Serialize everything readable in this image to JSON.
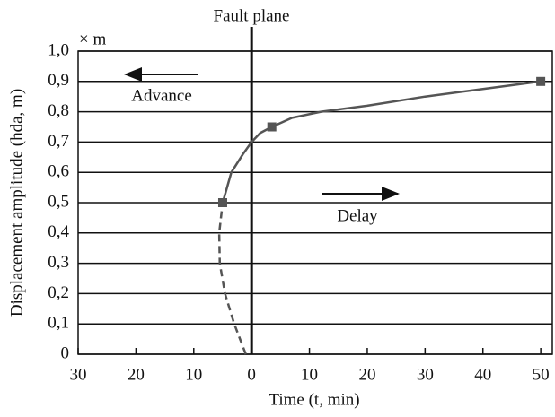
{
  "chart_data": {
    "type": "line",
    "title": "Fault plane",
    "x_label": "Time (t, min)",
    "y_label": "Displacement amplitude (hda, m)",
    "annotations": [
      "× m",
      "Advance",
      "Delay"
    ],
    "xlim": [
      -30,
      52
    ],
    "xticks": [
      {
        "value": -30,
        "label": "30"
      },
      {
        "value": -20,
        "label": "20"
      },
      {
        "value": -10,
        "label": "10"
      },
      0,
      10,
      20,
      30,
      40,
      50
    ],
    "ylim": [
      0,
      1
    ],
    "yticks": [
      0,
      {
        "value": 0.1,
        "label": "0,1"
      },
      {
        "value": 0.2,
        "label": "0,2"
      },
      {
        "value": 0.3,
        "label": "0,3"
      },
      {
        "value": 0.4,
        "label": "0,4"
      },
      {
        "value": 0.5,
        "label": "0,5"
      },
      {
        "value": 0.6,
        "label": "0,6"
      },
      {
        "value": 0.7,
        "label": "0,7"
      },
      {
        "value": 0.8,
        "label": "0,8"
      },
      {
        "value": 0.9,
        "label": "0,9"
      },
      {
        "value": 1.0,
        "label": "1,0"
      }
    ],
    "grid": true,
    "series": [
      {
        "color": "#555555",
        "style": "solid",
        "x": [
          -5,
          -3.5,
          -1.5,
          0,
          1.5,
          3.5,
          7,
          12,
          20,
          30,
          40,
          50
        ],
        "values": [
          0.5,
          0.6,
          0.66,
          0.7,
          0.73,
          0.75,
          0.78,
          0.8,
          0.82,
          0.85,
          0.875,
          0.9
        ]
      },
      {
        "color": "#555555",
        "style": "dashed",
        "x": [
          -1,
          -3,
          -4.6,
          -5.5,
          -5.6,
          -5
        ],
        "values": [
          0,
          0.1,
          0.2,
          0.3,
          0.4,
          0.5
        ]
      },
      {
        "color": "#555555",
        "style": "markers",
        "x": [
          -5,
          3.5,
          50
        ],
        "values": [
          0.5,
          0.75,
          0.9
        ]
      }
    ]
  }
}
